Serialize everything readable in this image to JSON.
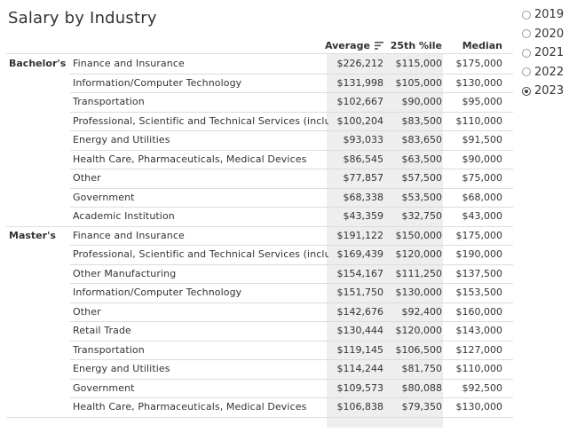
{
  "title": "Salary by Industry",
  "year_filter": {
    "options": [
      "2019",
      "2020",
      "2021",
      "2022",
      "2023"
    ],
    "selected": "2023"
  },
  "colors": {
    "shade": "#eeeeee",
    "rule": "#dcdcdc",
    "text": "#333333"
  },
  "chart_data": {
    "type": "table",
    "title": "Salary by Industry",
    "columns": [
      "Average",
      "25th %ile",
      "Median"
    ],
    "sorted_by": "Average",
    "groups": [
      {
        "name": "Bachelor's",
        "rows": [
          {
            "industry": "Finance and Insurance",
            "average": "$226,212",
            "p25": "$115,000",
            "median": "$175,000"
          },
          {
            "industry": "Information/Computer Technology",
            "average": "$131,998",
            "p25": "$105,000",
            "median": "$130,000"
          },
          {
            "industry": "Transportation",
            "average": "$102,667",
            "p25": "$90,000",
            "median": "$95,000"
          },
          {
            "industry": "Professional, Scientific and Technical Services (includin..",
            "average": "$100,204",
            "p25": "$83,500",
            "median": "$110,000"
          },
          {
            "industry": "Energy and Utilities",
            "average": "$93,033",
            "p25": "$83,650",
            "median": "$91,500"
          },
          {
            "industry": "Health Care, Pharmaceuticals, Medical Devices",
            "average": "$86,545",
            "p25": "$63,500",
            "median": "$90,000"
          },
          {
            "industry": "Other",
            "average": "$77,857",
            "p25": "$57,500",
            "median": "$75,000"
          },
          {
            "industry": "Government",
            "average": "$68,338",
            "p25": "$53,500",
            "median": "$68,000"
          },
          {
            "industry": "Academic Institution",
            "average": "$43,359",
            "p25": "$32,750",
            "median": "$43,000"
          }
        ]
      },
      {
        "name": "Master's",
        "rows": [
          {
            "industry": "Finance and Insurance",
            "average": "$191,122",
            "p25": "$150,000",
            "median": "$175,000"
          },
          {
            "industry": "Professional, Scientific and Technical Services (includin..",
            "average": "$169,439",
            "p25": "$120,000",
            "median": "$190,000"
          },
          {
            "industry": "Other Manufacturing",
            "average": "$154,167",
            "p25": "$111,250",
            "median": "$137,500"
          },
          {
            "industry": "Information/Computer Technology",
            "average": "$151,750",
            "p25": "$130,000",
            "median": "$153,500"
          },
          {
            "industry": "Other",
            "average": "$142,676",
            "p25": "$92,400",
            "median": "$160,000"
          },
          {
            "industry": "Retail Trade",
            "average": "$130,444",
            "p25": "$120,000",
            "median": "$143,000"
          },
          {
            "industry": "Transportation",
            "average": "$119,145",
            "p25": "$106,500",
            "median": "$127,000"
          },
          {
            "industry": "Energy and Utilities",
            "average": "$114,244",
            "p25": "$81,750",
            "median": "$110,000"
          },
          {
            "industry": "Government",
            "average": "$109,573",
            "p25": "$80,088",
            "median": "$92,500"
          },
          {
            "industry": "Health Care, Pharmaceuticals, Medical Devices",
            "average": "$106,838",
            "p25": "$79,350",
            "median": "$130,000"
          }
        ]
      }
    ]
  }
}
